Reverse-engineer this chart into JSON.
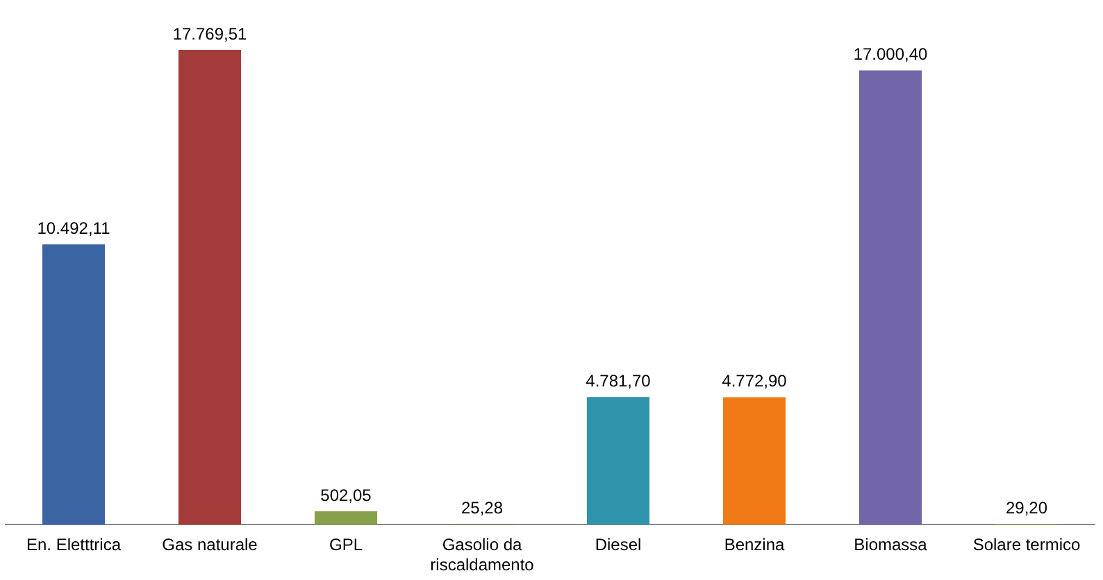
{
  "chart_data": {
    "type": "bar",
    "categories": [
      "En. Eletttrica",
      "Gas naturale",
      "GPL",
      "Gasolio da riscaldamento",
      "Diesel",
      "Benzina",
      "Biomassa",
      "Solare termico"
    ],
    "values": [
      10492.11,
      17769.51,
      502.05,
      25.28,
      4781.7,
      4772.9,
      17000.4,
      29.2
    ],
    "value_labels": [
      "10.492,11",
      "17.769,51",
      "502,05",
      "25,28",
      "4.781,70",
      "4.772,90",
      "17.000,40",
      "29,20"
    ],
    "colors": [
      "#3b64a2",
      "#a33b3a",
      "#87a04c",
      "#6f8a3a",
      "#2f93ab",
      "#f07a16",
      "#7266a8",
      "#90b050"
    ],
    "legend": false,
    "grid": false
  }
}
